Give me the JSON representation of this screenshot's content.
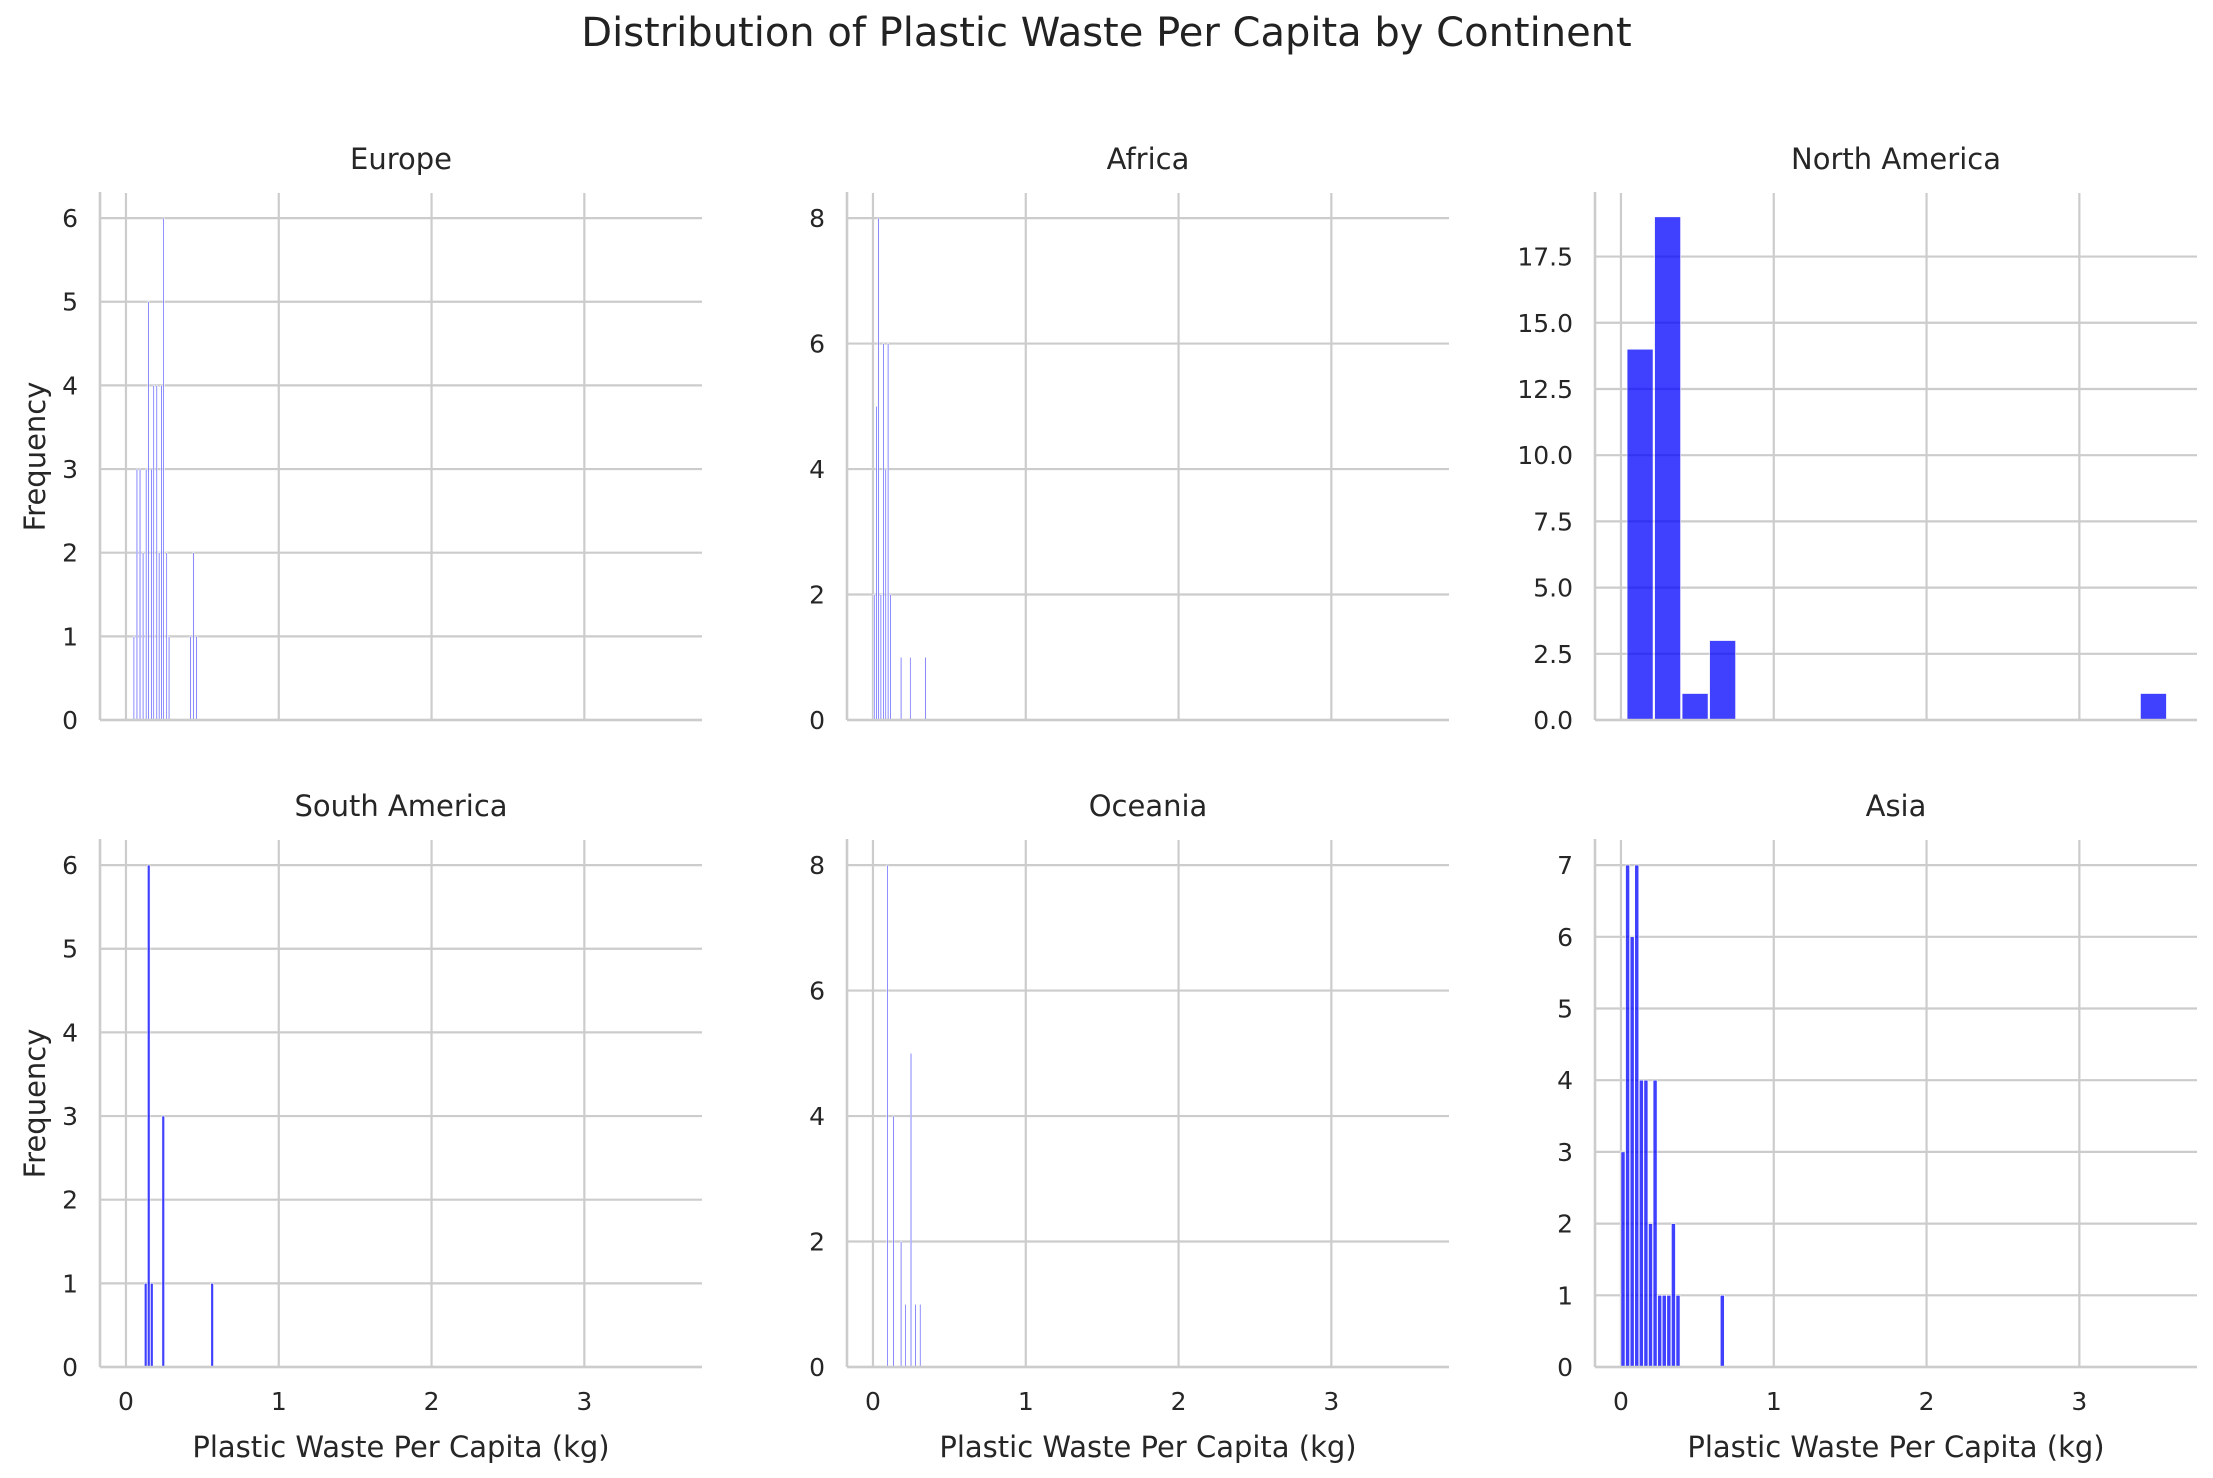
{
  "figure": {
    "title": "Distribution of Plastic Waste Per Capita by Continent"
  },
  "colors": {
    "bar": "#0000ff",
    "grid": "#cccccc",
    "axis": "#cccccc",
    "text": "#262626"
  },
  "chart_data": [
    {
      "type": "bar",
      "title": "Europe",
      "xlabel": "",
      "ylabel": "Frequency",
      "xlim": [
        -0.17,
        3.77
      ],
      "ylim": [
        0,
        6.3
      ],
      "xticks": [
        0,
        1,
        2,
        3
      ],
      "yticks": [
        "0",
        "1",
        "2",
        "3",
        "4",
        "5",
        "6"
      ],
      "bin_width": 0.0075,
      "bin_starts": [
        0.048,
        0.068,
        0.088,
        0.108,
        0.128,
        0.143,
        0.163,
        0.178,
        0.198,
        0.213,
        0.228,
        0.243,
        0.263,
        0.278,
        0.418,
        0.438,
        0.458
      ],
      "values": [
        1,
        3,
        3,
        2,
        3,
        5,
        3,
        4,
        4,
        2,
        4,
        6,
        2,
        1,
        1,
        2,
        1
      ],
      "grid": true
    },
    {
      "type": "bar",
      "title": "Africa",
      "xlabel": "",
      "ylabel": "",
      "xlim": [
        -0.17,
        3.77
      ],
      "ylim": [
        0,
        8.4
      ],
      "xticks": [
        0,
        1,
        2,
        3
      ],
      "yticks": [
        "0",
        "2",
        "4",
        "6",
        "8"
      ],
      "bin_width": 0.007,
      "bin_starts": [
        0.004,
        0.02,
        0.032,
        0.048,
        0.064,
        0.08,
        0.095,
        0.11,
        0.18,
        0.24,
        0.34
      ],
      "values": [
        2,
        5,
        8,
        2,
        6,
        4,
        6,
        2,
        1,
        1,
        1
      ],
      "grid": true
    },
    {
      "type": "bar",
      "title": "North America",
      "xlabel": "",
      "ylabel": "",
      "xlim": [
        -0.17,
        3.77
      ],
      "ylim": [
        0,
        19.9
      ],
      "xticks": [
        0,
        1,
        2,
        3
      ],
      "yticks": [
        "0.0",
        "2.5",
        "5.0",
        "7.5",
        "10.0",
        "12.5",
        "15.0",
        "17.5"
      ],
      "bin_width": 0.17,
      "bin_starts": [
        0.04,
        0.22,
        0.4,
        0.58,
        3.4
      ],
      "values": [
        14,
        19,
        1,
        3,
        1
      ],
      "grid": true
    },
    {
      "type": "bar",
      "title": "South America",
      "xlabel": "Plastic Waste Per Capita (kg)",
      "ylabel": "Frequency",
      "xlim": [
        -0.17,
        3.77
      ],
      "ylim": [
        0,
        6.3
      ],
      "xticks": [
        "0",
        "1",
        "2",
        "3"
      ],
      "yticks": [
        "0",
        "1",
        "2",
        "3",
        "4",
        "5",
        "6"
      ],
      "bin_width": 0.018,
      "bin_starts": [
        0.12,
        0.14,
        0.16,
        0.235,
        0.555
      ],
      "values": [
        1,
        6,
        1,
        3,
        1
      ],
      "grid": true
    },
    {
      "type": "bar",
      "title": "Oceania",
      "xlabel": "Plastic Waste Per Capita (kg)",
      "ylabel": "",
      "xlim": [
        -0.17,
        3.77
      ],
      "ylim": [
        0,
        8.4
      ],
      "xticks": [
        "0",
        "1",
        "2",
        "3"
      ],
      "yticks": [
        "0",
        "2",
        "4",
        "6",
        "8"
      ],
      "bin_width": 0.0075,
      "bin_starts": [
        0.09,
        0.13,
        0.18,
        0.21,
        0.245,
        0.275,
        0.305
      ],
      "values": [
        8,
        4,
        2,
        1,
        5,
        1,
        1
      ],
      "grid": true
    },
    {
      "type": "bar",
      "title": "Asia",
      "xlabel": "Plastic Waste Per Capita (kg)",
      "ylabel": "",
      "xlim": [
        -0.17,
        3.77
      ],
      "ylim": [
        0,
        7.35
      ],
      "xticks": [
        "0",
        "1",
        "2",
        "3"
      ],
      "yticks": [
        "0",
        "1",
        "2",
        "3",
        "4",
        "5",
        "6",
        "7"
      ],
      "bin_width": 0.0265,
      "bin_starts": [
        0.0,
        0.03,
        0.06,
        0.09,
        0.12,
        0.15,
        0.18,
        0.21,
        0.24,
        0.27,
        0.3,
        0.33,
        0.36,
        0.65
      ],
      "values": [
        3,
        7,
        6,
        7,
        4,
        4,
        2,
        4,
        1,
        1,
        1,
        2,
        1,
        1
      ],
      "grid": true
    }
  ]
}
